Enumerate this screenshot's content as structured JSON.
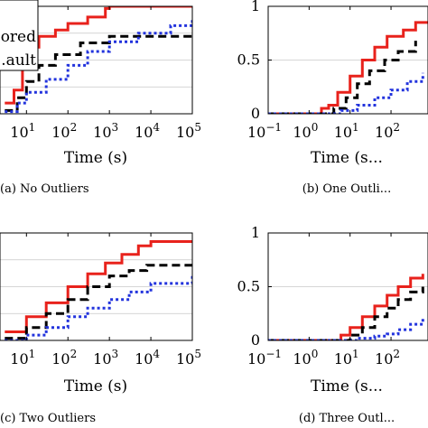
{
  "chart_data": [
    {
      "type": "line",
      "caption": "(a) No Outliers",
      "xlabel": "Time (s)",
      "x_scale": "log",
      "xticks": [
        {
          "value": 10,
          "label": "10",
          "exp": "1"
        },
        {
          "value": 100,
          "label": "10",
          "exp": "2"
        },
        {
          "value": 1000,
          "label": "10",
          "exp": "3"
        },
        {
          "value": 10000,
          "label": "10",
          "exp": "4"
        },
        {
          "value": 100000,
          "label": "10",
          "exp": "5"
        }
      ],
      "yticks": [],
      "ylim": [
        0,
        1
      ],
      "legend": {
        "entries": [
          "...ored",
          "...ault"
        ],
        "placement": "top-left"
      },
      "series": [
        {
          "color": "#e8221c",
          "dash": "solid",
          "points": [
            [
              3,
              0.1
            ],
            [
              5,
              0.22
            ],
            [
              8,
              0.45
            ],
            [
              12,
              0.62
            ],
            [
              20,
              0.72
            ],
            [
              50,
              0.78
            ],
            [
              100,
              0.84
            ],
            [
              300,
              0.9
            ],
            [
              800,
              0.98
            ],
            [
              1000,
              1.0
            ],
            [
              100000,
              1.0
            ]
          ]
        },
        {
          "color": "#000000",
          "dash": "dash",
          "points": [
            [
              3,
              0.03
            ],
            [
              6,
              0.15
            ],
            [
              10,
              0.3
            ],
            [
              20,
              0.45
            ],
            [
              50,
              0.55
            ],
            [
              200,
              0.66
            ],
            [
              1000,
              0.72
            ],
            [
              100000,
              0.72
            ]
          ]
        },
        {
          "color": "#2233dd",
          "dash": "dot",
          "points": [
            [
              3,
              0.02
            ],
            [
              6,
              0.1
            ],
            [
              10,
              0.2
            ],
            [
              30,
              0.32
            ],
            [
              100,
              0.45
            ],
            [
              300,
              0.58
            ],
            [
              1000,
              0.67
            ],
            [
              5000,
              0.75
            ],
            [
              30000,
              0.82
            ],
            [
              100000,
              0.88
            ]
          ]
        }
      ]
    },
    {
      "type": "line",
      "caption": "(b) One Outli...",
      "xlabel": "Time (s...",
      "x_scale": "log",
      "xticks": [
        {
          "value": 0.1,
          "label": "10",
          "exp": "−1"
        },
        {
          "value": 1,
          "label": "10",
          "exp": "0"
        },
        {
          "value": 10,
          "label": "10",
          "exp": "1"
        },
        {
          "value": 100,
          "label": "10",
          "exp": "2"
        }
      ],
      "yticks": [
        {
          "value": 0,
          "label": "0"
        },
        {
          "value": 0.5,
          "label": "0.5"
        },
        {
          "value": 1,
          "label": "1"
        }
      ],
      "ylim": [
        0,
        1
      ],
      "series": [
        {
          "color": "#e8221c",
          "dash": "solid",
          "points": [
            [
              0.1,
              0.0
            ],
            [
              1.5,
              0.0
            ],
            [
              2,
              0.05
            ],
            [
              3,
              0.08
            ],
            [
              5,
              0.2
            ],
            [
              10,
              0.35
            ],
            [
              20,
              0.5
            ],
            [
              40,
              0.62
            ],
            [
              80,
              0.72
            ],
            [
              200,
              0.78
            ],
            [
              400,
              0.85
            ],
            [
              1000,
              0.95
            ]
          ]
        },
        {
          "color": "#000000",
          "dash": "dash",
          "points": [
            [
              0.1,
              0.0
            ],
            [
              2,
              0.0
            ],
            [
              4,
              0.05
            ],
            [
              8,
              0.15
            ],
            [
              15,
              0.28
            ],
            [
              30,
              0.4
            ],
            [
              70,
              0.5
            ],
            [
              150,
              0.58
            ],
            [
              400,
              0.68
            ]
          ]
        },
        {
          "color": "#2233dd",
          "dash": "dot",
          "points": [
            [
              0.1,
              0.0
            ],
            [
              3,
              0.0
            ],
            [
              6,
              0.03
            ],
            [
              15,
              0.08
            ],
            [
              40,
              0.15
            ],
            [
              100,
              0.22
            ],
            [
              250,
              0.3
            ],
            [
              600,
              0.38
            ]
          ]
        }
      ]
    },
    {
      "type": "line",
      "caption": "(c) Two Outliers",
      "xlabel": "Time (s)",
      "x_scale": "log",
      "xticks": [
        {
          "value": 10,
          "label": "10",
          "exp": "1"
        },
        {
          "value": 100,
          "label": "10",
          "exp": "2"
        },
        {
          "value": 1000,
          "label": "10",
          "exp": "3"
        },
        {
          "value": 10000,
          "label": "10",
          "exp": "4"
        },
        {
          "value": 100000,
          "label": "10",
          "exp": "5"
        }
      ],
      "yticks": [],
      "ylim": [
        0,
        1
      ],
      "series": [
        {
          "color": "#e8221c",
          "dash": "solid",
          "points": [
            [
              3,
              0.08
            ],
            [
              10,
              0.22
            ],
            [
              30,
              0.35
            ],
            [
              100,
              0.5
            ],
            [
              300,
              0.62
            ],
            [
              800,
              0.72
            ],
            [
              2000,
              0.8
            ],
            [
              5000,
              0.88
            ],
            [
              10000,
              0.92
            ],
            [
              100000,
              0.92
            ]
          ]
        },
        {
          "color": "#000000",
          "dash": "dash",
          "points": [
            [
              3,
              0.02
            ],
            [
              10,
              0.12
            ],
            [
              30,
              0.25
            ],
            [
              100,
              0.38
            ],
            [
              300,
              0.5
            ],
            [
              1000,
              0.6
            ],
            [
              3000,
              0.65
            ],
            [
              8000,
              0.7
            ],
            [
              100000,
              0.7
            ]
          ]
        },
        {
          "color": "#2233dd",
          "dash": "dot",
          "points": [
            [
              3,
              0.0
            ],
            [
              10,
              0.05
            ],
            [
              30,
              0.12
            ],
            [
              100,
              0.22
            ],
            [
              300,
              0.3
            ],
            [
              1000,
              0.38
            ],
            [
              3000,
              0.45
            ],
            [
              10000,
              0.53
            ],
            [
              100000,
              0.6
            ]
          ]
        }
      ]
    },
    {
      "type": "line",
      "caption": "(d) Three Outl...",
      "xlabel": "Time (s...",
      "x_scale": "log",
      "xticks": [
        {
          "value": 0.1,
          "label": "10",
          "exp": "−1"
        },
        {
          "value": 1,
          "label": "10",
          "exp": "0"
        },
        {
          "value": 10,
          "label": "10",
          "exp": "1"
        },
        {
          "value": 100,
          "label": "10",
          "exp": "2"
        }
      ],
      "yticks": [
        {
          "value": 0,
          "label": "0"
        },
        {
          "value": 0.5,
          "label": "0.5"
        },
        {
          "value": 1,
          "label": "1"
        }
      ],
      "ylim": [
        0,
        1
      ],
      "series": [
        {
          "color": "#e8221c",
          "dash": "solid",
          "points": [
            [
              0.1,
              0.0
            ],
            [
              4,
              0.0
            ],
            [
              6,
              0.05
            ],
            [
              10,
              0.12
            ],
            [
              20,
              0.22
            ],
            [
              40,
              0.32
            ],
            [
              80,
              0.42
            ],
            [
              150,
              0.5
            ],
            [
              300,
              0.58
            ],
            [
              600,
              0.62
            ]
          ]
        },
        {
          "color": "#000000",
          "dash": "dash",
          "points": [
            [
              0.1,
              0.0
            ],
            [
              6,
              0.0
            ],
            [
              10,
              0.05
            ],
            [
              20,
              0.12
            ],
            [
              40,
              0.22
            ],
            [
              80,
              0.3
            ],
            [
              150,
              0.38
            ],
            [
              300,
              0.45
            ],
            [
              600,
              0.5
            ]
          ]
        },
        {
          "color": "#2233dd",
          "dash": "dot",
          "points": [
            [
              0.1,
              0.0
            ],
            [
              8,
              0.0
            ],
            [
              15,
              0.02
            ],
            [
              40,
              0.04
            ],
            [
              80,
              0.06
            ],
            [
              150,
              0.1
            ],
            [
              300,
              0.15
            ],
            [
              600,
              0.2
            ]
          ]
        }
      ]
    }
  ]
}
